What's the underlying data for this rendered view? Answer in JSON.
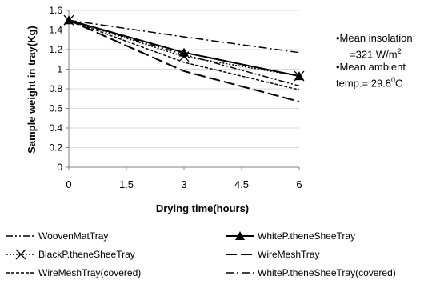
{
  "chart_data": {
    "type": "line",
    "xlabel": "Drying time(hours)",
    "ylabel": "Sample weight  in tray(Kg)",
    "xlim": [
      0,
      6
    ],
    "ylim": [
      0,
      1.6
    ],
    "xticks": [
      0,
      1.5,
      3,
      4.5,
      6
    ],
    "xtick_labels": [
      "0",
      "1.5",
      "3",
      "4.5",
      "6"
    ],
    "yticks": [
      0,
      0.2,
      0.4,
      0.6,
      0.8,
      1,
      1.2,
      1.4,
      1.6
    ],
    "ytick_labels": [
      "0",
      "0.2",
      "0.4",
      "0.6",
      "0.8",
      "1",
      "1.2",
      "1.4",
      "1.6"
    ],
    "grid": "horizontal",
    "legend_position": "bottom",
    "x": [
      0,
      3,
      6
    ],
    "series": [
      {
        "name": "WoovenMatTray",
        "values": [
          1.5,
          1.15,
          0.83
        ],
        "style": "dash-dot-dot",
        "color": "#000000"
      },
      {
        "name": "WhiteP.theneSheeTray",
        "values": [
          1.5,
          1.17,
          0.93
        ],
        "style": "solid-triangle",
        "color": "#000000"
      },
      {
        "name": "BlackP.theneSheeTray",
        "values": [
          1.5,
          1.13,
          0.93
        ],
        "style": "dotted-x",
        "color": "#000000"
      },
      {
        "name": "WireMeshTray",
        "values": [
          1.5,
          0.98,
          0.67
        ],
        "style": "long-dash",
        "color": "#000000"
      },
      {
        "name": "WireMeshTray(covered)",
        "values": [
          1.5,
          1.07,
          0.79
        ],
        "style": "short-dash",
        "color": "#000000"
      },
      {
        "name": "WhiteP.theneSheeTray(covered)",
        "values": [
          1.5,
          1.33,
          1.17
        ],
        "style": "dash-dot",
        "color": "#000000"
      }
    ],
    "annotations": {
      "line1": "•Mean insolation",
      "line2": "=321 W/m",
      "line2_sup": "2",
      "line3": "•Mean ambient",
      "line4": "temp.=  29.8",
      "line4_sup": "0",
      "line4_end": "C"
    }
  }
}
